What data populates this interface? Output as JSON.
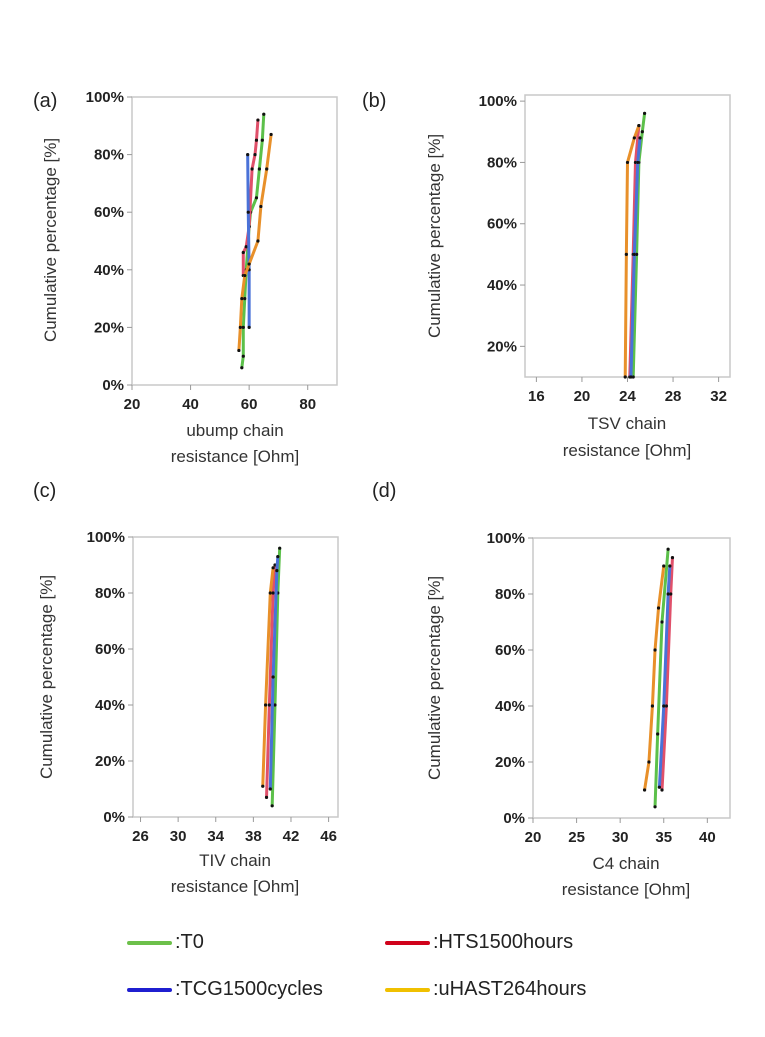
{
  "legend": [
    {
      "label": ":T0",
      "color": "#6cc04a"
    },
    {
      "label": ":HTS1500hours",
      "color": "#d0021b"
    },
    {
      "label": ":TCG1500cycles",
      "color": "#1f1fd0"
    },
    {
      "label": ":uHAST264hours",
      "color": "#f0c000"
    }
  ],
  "chart_data": [
    {
      "panel": "(a)",
      "type": "line",
      "xlabel": [
        "ubump chain",
        "resistance [Ohm]"
      ],
      "ylabel": "Cumulative percentage [%]",
      "xlim": [
        20,
        90
      ],
      "ylim": [
        0,
        100
      ],
      "xticks": [
        20,
        40,
        60,
        80
      ],
      "xtick_labels": [
        "20",
        "40",
        "60",
        "80"
      ],
      "yticks": [
        0,
        20,
        40,
        60,
        80,
        100
      ],
      "ytick_labels": [
        "0%",
        "20%",
        "40%",
        "60%",
        "80%",
        "100%"
      ],
      "series": [
        {
          "name": ":T0",
          "color": "#5cc04a",
          "points": [
            [
              57.5,
              6
            ],
            [
              58,
              10
            ],
            [
              58,
              20
            ],
            [
              58.5,
              30
            ],
            [
              59,
              40
            ],
            [
              60,
              55
            ],
            [
              60.5,
              60
            ],
            [
              62.5,
              65
            ],
            [
              63.5,
              75
            ],
            [
              64.5,
              85
            ],
            [
              65,
              94
            ]
          ]
        },
        {
          "name": ":HTS1500hours",
          "color": "#e0506a",
          "points": [
            [
              58,
              38
            ],
            [
              58,
              46
            ],
            [
              59,
              48
            ],
            [
              60,
              55
            ],
            [
              61,
              75
            ],
            [
              62,
              80
            ],
            [
              62.5,
              85
            ],
            [
              63,
              92
            ]
          ]
        },
        {
          "name": ":TCG1500cycles",
          "color": "#4a72d8",
          "points": [
            [
              60,
              20
            ],
            [
              60,
              40
            ],
            [
              59.7,
              60
            ],
            [
              59.5,
              80
            ]
          ]
        },
        {
          "name": ":uHAST264hours",
          "color": "#e8902a",
          "points": [
            [
              56.5,
              12
            ],
            [
              57,
              20
            ],
            [
              57.5,
              30
            ],
            [
              58.5,
              38
            ],
            [
              60,
              42
            ],
            [
              63,
              50
            ],
            [
              64,
              62
            ],
            [
              66,
              75
            ],
            [
              67.5,
              87
            ]
          ]
        }
      ]
    },
    {
      "panel": "(b)",
      "type": "line",
      "xlabel": [
        "TSV chain",
        "resistance [Ohm]"
      ],
      "ylabel": "Cumulative percentage [%]",
      "xlim": [
        15,
        33
      ],
      "ylim": [
        10,
        102
      ],
      "xticks": [
        16,
        20,
        24,
        28,
        32
      ],
      "xtick_labels": [
        "16",
        "20",
        "24",
        "28",
        "32"
      ],
      "yticks": [
        20,
        40,
        60,
        80,
        100
      ],
      "ytick_labels": [
        "20%",
        "40%",
        "60%",
        "80%",
        "100%"
      ],
      "series": [
        {
          "name": ":T0",
          "color": "#5cc04a",
          "points": [
            [
              24.5,
              10
            ],
            [
              24.8,
              50
            ],
            [
              25,
              80
            ],
            [
              25.3,
              90
            ],
            [
              25.5,
              96
            ]
          ]
        },
        {
          "name": ":HTS1500hours",
          "color": "#e0506a",
          "points": [
            [
              24.2,
              10
            ],
            [
              24.5,
              50
            ],
            [
              24.7,
              80
            ],
            [
              25,
              92
            ]
          ]
        },
        {
          "name": ":TCG1500cycles",
          "color": "#4a72d8",
          "points": [
            [
              24.3,
              10
            ],
            [
              24.6,
              50
            ],
            [
              24.9,
              80
            ],
            [
              25.1,
              88
            ]
          ]
        },
        {
          "name": ":uHAST264hours",
          "color": "#e8902a",
          "points": [
            [
              23.8,
              10
            ],
            [
              23.9,
              50
            ],
            [
              24,
              80
            ],
            [
              24.6,
              88
            ],
            [
              25,
              92
            ]
          ]
        }
      ]
    },
    {
      "panel": "(c)",
      "type": "line",
      "xlabel": [
        "TIV chain",
        "resistance [Ohm]"
      ],
      "ylabel": "Cumulative percentage [%]",
      "xlim": [
        25.2,
        47
      ],
      "ylim": [
        0,
        100
      ],
      "xticks": [
        26,
        30,
        34,
        38,
        42,
        46
      ],
      "xtick_labels": [
        "26",
        "30",
        "34",
        "38",
        "42",
        "46"
      ],
      "yticks": [
        0,
        20,
        40,
        60,
        80,
        100
      ],
      "ytick_labels": [
        "0%",
        "20%",
        "40%",
        "60%",
        "80%",
        "100%"
      ],
      "series": [
        {
          "name": ":T0",
          "color": "#5cc04a",
          "points": [
            [
              40,
              4
            ],
            [
              40.3,
              40
            ],
            [
              40.6,
              80
            ],
            [
              40.8,
              96
            ]
          ]
        },
        {
          "name": ":HTS1500hours",
          "color": "#e0506a",
          "points": [
            [
              39.4,
              7
            ],
            [
              39.7,
              40
            ],
            [
              40.1,
              80
            ],
            [
              40.3,
              90
            ]
          ]
        },
        {
          "name": ":TCG1500cycles",
          "color": "#4a72d8",
          "points": [
            [
              39.8,
              10
            ],
            [
              40.1,
              50
            ],
            [
              40.5,
              88
            ],
            [
              40.6,
              93
            ]
          ]
        },
        {
          "name": ":uHAST264hours",
          "color": "#e8902a",
          "points": [
            [
              39,
              11
            ],
            [
              39.3,
              40
            ],
            [
              39.8,
              80
            ],
            [
              40.1,
              89
            ]
          ]
        }
      ]
    },
    {
      "panel": "(d)",
      "type": "line",
      "xlabel": [
        "C4 chain",
        "resistance [Ohm]"
      ],
      "ylabel": "Cumulative percentage [%]",
      "xlim": [
        20,
        42.6
      ],
      "ylim": [
        0,
        100
      ],
      "xticks": [
        20,
        25,
        30,
        35,
        40
      ],
      "xtick_labels": [
        "20",
        "25",
        "30",
        "35",
        "40"
      ],
      "yticks": [
        0,
        20,
        40,
        60,
        80,
        100
      ],
      "ytick_labels": [
        "0%",
        "20%",
        "40%",
        "60%",
        "80%",
        "100%"
      ],
      "series": [
        {
          "name": ":T0",
          "color": "#5cc04a",
          "points": [
            [
              34,
              4
            ],
            [
              34.3,
              30
            ],
            [
              34.8,
              70
            ],
            [
              35.5,
              96
            ]
          ]
        },
        {
          "name": ":HTS1500hours",
          "color": "#e0506a",
          "points": [
            [
              34.8,
              10
            ],
            [
              35.3,
              40
            ],
            [
              35.8,
              80
            ],
            [
              36,
              93
            ]
          ]
        },
        {
          "name": ":TCG1500cycles",
          "color": "#4a72d8",
          "points": [
            [
              34.5,
              11
            ],
            [
              35,
              40
            ],
            [
              35.5,
              80
            ],
            [
              35.7,
              90
            ]
          ]
        },
        {
          "name": ":uHAST264hours",
          "color": "#e8902a",
          "points": [
            [
              32.8,
              10
            ],
            [
              33.3,
              20
            ],
            [
              33.7,
              40
            ],
            [
              34,
              60
            ],
            [
              34.4,
              75
            ],
            [
              35,
              90
            ]
          ]
        }
      ]
    }
  ]
}
